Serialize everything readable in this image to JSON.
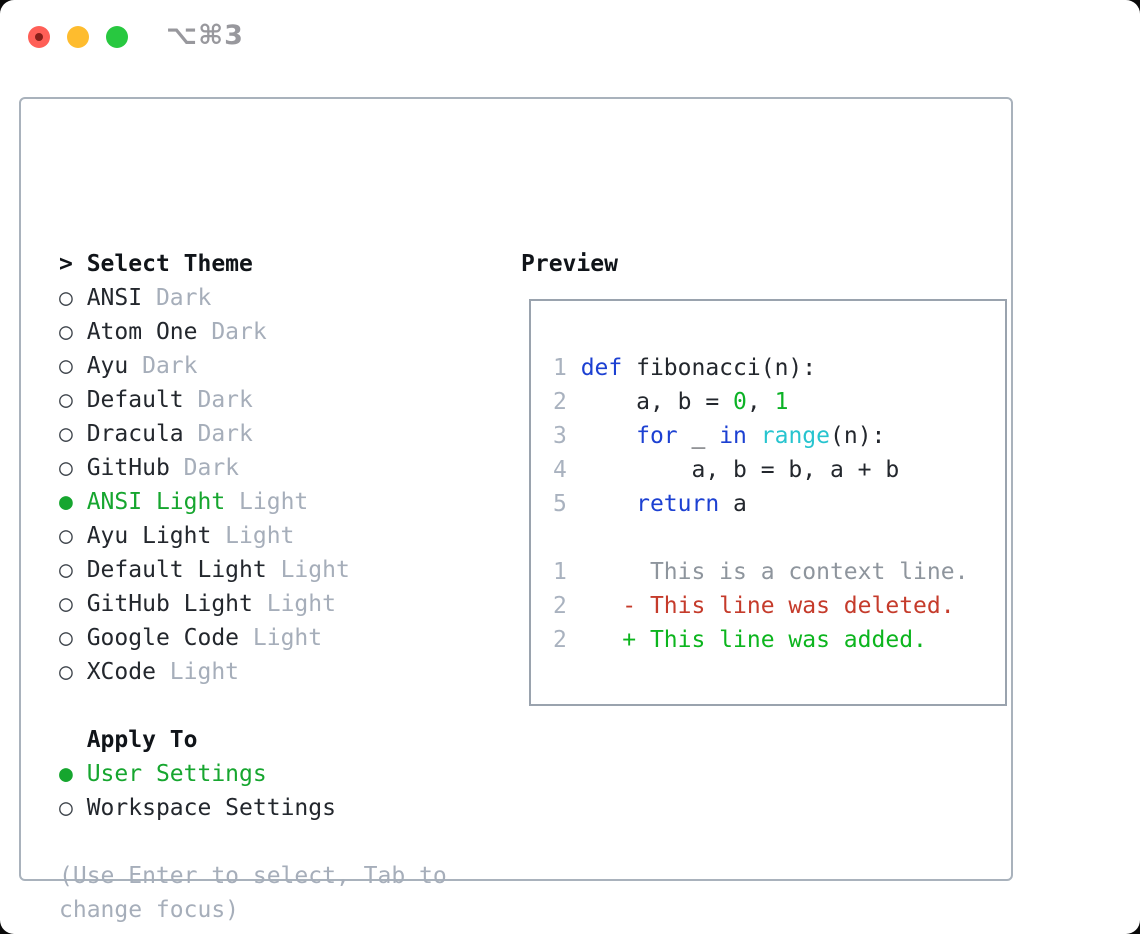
{
  "window": {
    "title": "⌥⌘3",
    "traffic_lights": [
      "close",
      "minimize",
      "zoom"
    ]
  },
  "colors": {
    "accent_green": "#16a62f",
    "text": "#23272d",
    "muted_gray": "#a6aeba",
    "line_number_gray": "#a9b2bf",
    "keyword_blue": "#1c40d2",
    "function_cyan": "#27c4cf",
    "number_green": "#0cb226",
    "diff_added_green": "#0cb51e",
    "diff_deleted_red": "#c53b2b",
    "diff_context_gray": "#8e959d",
    "panel_border": "#a9b2bc",
    "traffic_red": "#ff5f57",
    "traffic_yellow": "#febc2e",
    "traffic_green": "#28c840"
  },
  "theme_picker": {
    "header_prefix": ">",
    "header": "Select Theme",
    "radio_selected": "●",
    "radio_unselected": "○",
    "items": [
      {
        "name": "ANSI",
        "variant": "Dark",
        "selected": false
      },
      {
        "name": "Atom One",
        "variant": "Dark",
        "selected": false
      },
      {
        "name": "Ayu",
        "variant": "Dark",
        "selected": false
      },
      {
        "name": "Default",
        "variant": "Dark",
        "selected": false
      },
      {
        "name": "Dracula",
        "variant": "Dark",
        "selected": false
      },
      {
        "name": "GitHub",
        "variant": "Dark",
        "selected": false
      },
      {
        "name": "ANSI Light",
        "variant": "Light",
        "selected": true
      },
      {
        "name": "Ayu Light",
        "variant": "Light",
        "selected": false
      },
      {
        "name": "Default Light",
        "variant": "Light",
        "selected": false
      },
      {
        "name": "GitHub Light",
        "variant": "Light",
        "selected": false
      },
      {
        "name": "Google Code",
        "variant": "Light",
        "selected": false
      },
      {
        "name": "XCode",
        "variant": "Light",
        "selected": false
      }
    ]
  },
  "apply_to": {
    "header": "Apply To",
    "options": [
      {
        "label": "User Settings",
        "selected": true
      },
      {
        "label": "Workspace Settings",
        "selected": false
      }
    ]
  },
  "hint": [
    "(Use Enter to select, Tab to",
    "change focus)"
  ],
  "preview": {
    "header": "Preview",
    "code_lines": [
      {
        "num": "1",
        "segments": [
          {
            "t": "def",
            "c": "kw"
          },
          {
            "t": " fibonacci(n):",
            "c": "fg"
          }
        ]
      },
      {
        "num": "2",
        "segments": [
          {
            "t": "    a, b = ",
            "c": "fg"
          },
          {
            "t": "0",
            "c": "num"
          },
          {
            "t": ", ",
            "c": "fg"
          },
          {
            "t": "1",
            "c": "num"
          }
        ]
      },
      {
        "num": "3",
        "segments": [
          {
            "t": "    ",
            "c": "fg"
          },
          {
            "t": "for",
            "c": "kw"
          },
          {
            "t": " _ ",
            "c": "fg"
          },
          {
            "t": "in",
            "c": "kw"
          },
          {
            "t": " ",
            "c": "fg"
          },
          {
            "t": "range",
            "c": "fn"
          },
          {
            "t": "(n):",
            "c": "fg"
          }
        ]
      },
      {
        "num": "4",
        "segments": [
          {
            "t": "        a, b = b, a + b",
            "c": "fg"
          }
        ]
      },
      {
        "num": "5",
        "segments": [
          {
            "t": "    ",
            "c": "fg"
          },
          {
            "t": "return",
            "c": "kw"
          },
          {
            "t": " a",
            "c": "fg"
          }
        ]
      },
      {
        "num": "",
        "segments": []
      },
      {
        "num": "1",
        "segments": [
          {
            "t": "     This is a context line.",
            "c": "ctx"
          }
        ]
      },
      {
        "num": "2",
        "segments": [
          {
            "t": "   - This line was deleted.",
            "c": "del"
          }
        ]
      },
      {
        "num": "2",
        "segments": [
          {
            "t": "   + This line was added.",
            "c": "add"
          }
        ]
      }
    ]
  }
}
